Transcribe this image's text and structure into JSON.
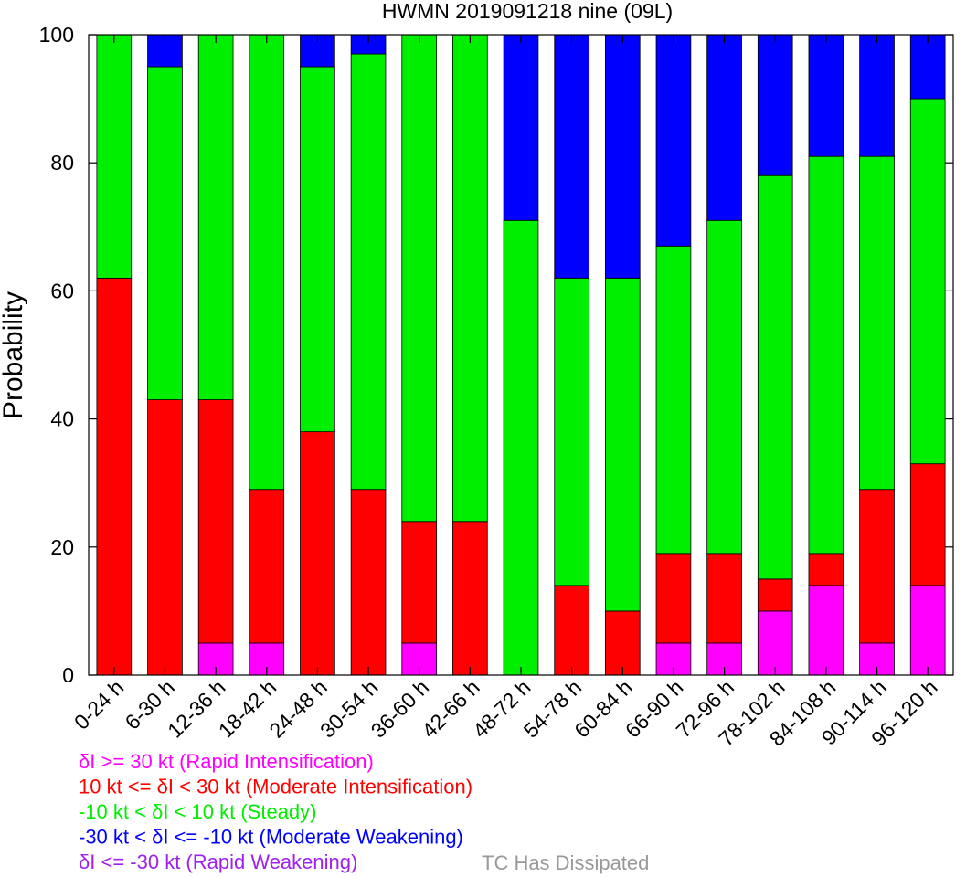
{
  "chart_data": {
    "type": "bar",
    "stacked": true,
    "title": "HWMN 2019091218 nine (09L)",
    "xlabel": "",
    "ylabel": "Probability",
    "ylim": [
      0,
      100
    ],
    "yticks": [
      "0",
      "20",
      "40",
      "60",
      "80",
      "100"
    ],
    "categories": [
      "0-24 h",
      "6-30 h",
      "12-36 h",
      "18-42 h",
      "24-48 h",
      "30-54 h",
      "36-60 h",
      "42-66 h",
      "48-72 h",
      "54-78 h",
      "60-84 h",
      "66-90 h",
      "72-96 h",
      "78-102 h",
      "84-108 h",
      "90-114 h",
      "96-120 h"
    ],
    "series": [
      {
        "name": "Rapid Weakening",
        "color": "#a020f0",
        "values": [
          0,
          0,
          0,
          0,
          0,
          0,
          0,
          0,
          0,
          0,
          0,
          0,
          0,
          0,
          0,
          0,
          0
        ]
      },
      {
        "name": "Rapid Intensification",
        "color": "#ff00ff",
        "values": [
          0,
          0,
          5,
          5,
          0,
          0,
          5,
          0,
          0,
          0,
          0,
          5,
          5,
          10,
          14,
          5,
          14
        ]
      },
      {
        "name": "Moderate Intensification",
        "color": "#ff0000",
        "values": [
          62,
          43,
          38,
          24,
          38,
          29,
          19,
          24,
          0,
          14,
          10,
          14,
          14,
          5,
          5,
          24,
          19
        ]
      },
      {
        "name": "Steady",
        "color": "#00ee00",
        "values": [
          38,
          52,
          57,
          71,
          57,
          68,
          76,
          76,
          71,
          48,
          52,
          48,
          52,
          63,
          62,
          52,
          57
        ]
      },
      {
        "name": "Moderate Weakening",
        "color": "#0000ff",
        "values": [
          0,
          5,
          0,
          0,
          5,
          3,
          0,
          0,
          29,
          38,
          38,
          33,
          29,
          22,
          19,
          19,
          10
        ]
      }
    ],
    "legend": {
      "placement": "bottom-left",
      "entries": [
        {
          "text": "δI >= 30 kt (Rapid Intensification)",
          "color": "#ff00ff"
        },
        {
          "text": "10 kt <= δI < 30 kt (Moderate Intensification)",
          "color": "#ff0000"
        },
        {
          "text": "-10 kt < δI < 10 kt (Steady)",
          "color": "#00ee00"
        },
        {
          "text": "-30 kt < δI <= -10 kt (Moderate Weakening)",
          "color": "#0000ff"
        },
        {
          "text": "δI <= -30 kt (Rapid Weakening)",
          "color": "#a020f0"
        }
      ],
      "dissipated": {
        "text": "TC Has Dissipated",
        "color": "#999999"
      }
    }
  }
}
